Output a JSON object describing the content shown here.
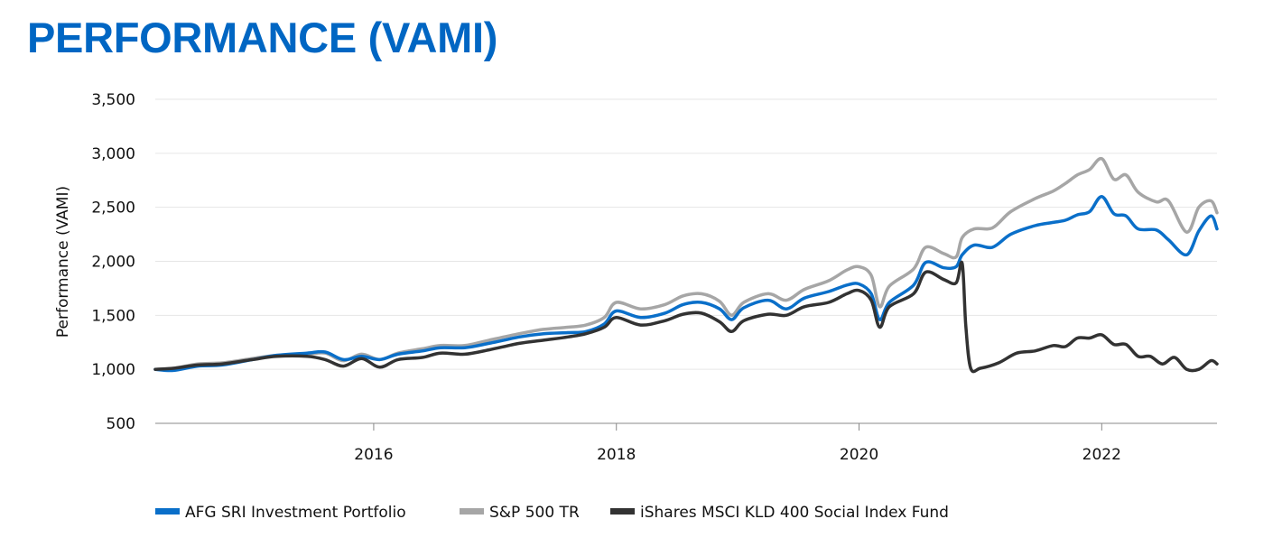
{
  "page": {
    "title": "PERFORMANCE (VAMI)"
  },
  "chart_data": {
    "type": "line",
    "ylabel": "Performance (VAMI)",
    "xlabel": "",
    "ylim": [
      500,
      3500
    ],
    "yticks": [
      500,
      1000,
      1500,
      2000,
      2500,
      3000,
      3500
    ],
    "ytick_labels": [
      "500",
      "1,000",
      "1,500",
      "2,000",
      "2,500",
      "3,000",
      "3,500"
    ],
    "xlim": [
      2014.2,
      2022.95
    ],
    "xticks": [
      2016,
      2018,
      2020,
      2022
    ],
    "xtick_labels": [
      "2016",
      "2018",
      "2020",
      "2022"
    ],
    "grid": "horizontal",
    "legend_position": "bottom",
    "series": [
      {
        "name": "AFG SRI Investment Portfolio",
        "color": "#0a6fc9",
        "x": [
          2014.2,
          2014.35,
          2014.55,
          2014.75,
          2015.0,
          2015.2,
          2015.45,
          2015.6,
          2015.75,
          2015.9,
          2016.05,
          2016.2,
          2016.4,
          2016.55,
          2016.75,
          2016.95,
          2017.2,
          2017.4,
          2017.6,
          2017.75,
          2017.9,
          2018.0,
          2018.2,
          2018.4,
          2018.55,
          2018.7,
          2018.85,
          2018.95,
          2019.05,
          2019.25,
          2019.4,
          2019.55,
          2019.75,
          2019.9,
          2020.0,
          2020.1,
          2020.17,
          2020.25,
          2020.45,
          2020.55,
          2020.7,
          2020.8,
          2020.85,
          2020.95,
          2021.1,
          2021.25,
          2021.45,
          2021.6,
          2021.7,
          2021.8,
          2021.9,
          2022.0,
          2022.1,
          2022.2,
          2022.3,
          2022.45,
          2022.55,
          2022.7,
          2022.8,
          2022.9,
          2022.95
        ],
        "y": [
          1000,
          990,
          1030,
          1040,
          1090,
          1130,
          1150,
          1160,
          1090,
          1120,
          1090,
          1140,
          1170,
          1200,
          1200,
          1240,
          1300,
          1330,
          1340,
          1350,
          1420,
          1540,
          1480,
          1520,
          1600,
          1620,
          1560,
          1460,
          1570,
          1640,
          1560,
          1660,
          1720,
          1780,
          1790,
          1700,
          1460,
          1620,
          1780,
          1990,
          1940,
          1950,
          2060,
          2150,
          2130,
          2250,
          2330,
          2360,
          2380,
          2430,
          2460,
          2600,
          2440,
          2420,
          2300,
          2290,
          2200,
          2060,
          2280,
          2420,
          2300
        ]
      },
      {
        "name": "S&P 500 TR",
        "color": "#a6a6a6",
        "x": [
          2014.2,
          2014.35,
          2014.55,
          2014.75,
          2015.0,
          2015.2,
          2015.45,
          2015.6,
          2015.75,
          2015.9,
          2016.05,
          2016.2,
          2016.4,
          2016.55,
          2016.75,
          2016.95,
          2017.2,
          2017.4,
          2017.6,
          2017.75,
          2017.9,
          2018.0,
          2018.2,
          2018.4,
          2018.55,
          2018.7,
          2018.85,
          2018.95,
          2019.05,
          2019.25,
          2019.4,
          2019.55,
          2019.75,
          2019.9,
          2020.0,
          2020.1,
          2020.17,
          2020.25,
          2020.45,
          2020.55,
          2020.7,
          2020.8,
          2020.85,
          2020.95,
          2021.1,
          2021.25,
          2021.45,
          2021.6,
          2021.7,
          2021.8,
          2021.9,
          2022.0,
          2022.1,
          2022.2,
          2022.3,
          2022.45,
          2022.55,
          2022.7,
          2022.8,
          2022.9,
          2022.95
        ],
        "y": [
          1000,
          1010,
          1050,
          1060,
          1100,
          1130,
          1140,
          1150,
          1080,
          1140,
          1090,
          1150,
          1190,
          1220,
          1220,
          1270,
          1330,
          1370,
          1390,
          1410,
          1480,
          1620,
          1560,
          1600,
          1680,
          1700,
          1630,
          1500,
          1620,
          1700,
          1640,
          1740,
          1820,
          1920,
          1950,
          1870,
          1580,
          1770,
          1930,
          2130,
          2070,
          2040,
          2220,
          2300,
          2310,
          2460,
          2580,
          2650,
          2720,
          2800,
          2850,
          2950,
          2760,
          2800,
          2640,
          2550,
          2560,
          2270,
          2500,
          2560,
          2450
        ]
      },
      {
        "name": "iShares MSCI KLD 400 Social Index Fund",
        "color": "#323232",
        "x": [
          2014.2,
          2014.35,
          2014.55,
          2014.75,
          2015.0,
          2015.2,
          2015.45,
          2015.6,
          2015.75,
          2015.9,
          2016.05,
          2016.2,
          2016.4,
          2016.55,
          2016.75,
          2016.95,
          2017.2,
          2017.4,
          2017.6,
          2017.75,
          2017.9,
          2018.0,
          2018.2,
          2018.4,
          2018.55,
          2018.7,
          2018.85,
          2018.95,
          2019.05,
          2019.25,
          2019.4,
          2019.55,
          2019.75,
          2019.9,
          2020.0,
          2020.1,
          2020.17,
          2020.25,
          2020.45,
          2020.55,
          2020.7,
          2020.8,
          2020.85,
          2020.88,
          2020.92,
          2021.0,
          2021.15,
          2021.3,
          2021.45,
          2021.6,
          2021.7,
          2021.8,
          2021.9,
          2022.0,
          2022.1,
          2022.2,
          2022.3,
          2022.4,
          2022.5,
          2022.6,
          2022.7,
          2022.8,
          2022.9,
          2022.95
        ],
        "y": [
          1000,
          1010,
          1040,
          1050,
          1090,
          1120,
          1120,
          1090,
          1030,
          1100,
          1020,
          1090,
          1110,
          1150,
          1140,
          1180,
          1240,
          1270,
          1300,
          1330,
          1390,
          1480,
          1410,
          1450,
          1510,
          1520,
          1440,
          1350,
          1450,
          1510,
          1500,
          1580,
          1620,
          1700,
          1730,
          1640,
          1390,
          1580,
          1700,
          1900,
          1830,
          1800,
          1980,
          1400,
          1010,
          1010,
          1060,
          1150,
          1170,
          1220,
          1210,
          1290,
          1290,
          1320,
          1230,
          1230,
          1120,
          1120,
          1050,
          1110,
          1000,
          1000,
          1080,
          1050
        ]
      }
    ]
  }
}
